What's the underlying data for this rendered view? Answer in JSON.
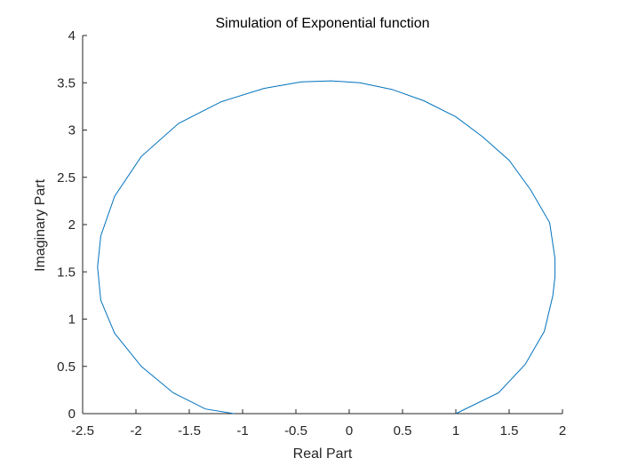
{
  "chart_data": {
    "type": "line",
    "title": "Simulation of Exponential function",
    "xlabel": "Real Part",
    "ylabel": "Imaginary Part",
    "xlim": [
      -2.5,
      2
    ],
    "ylim": [
      0,
      4
    ],
    "xticks": [
      "-2.5",
      "-2",
      "-1.5",
      "-1",
      "-0.5",
      "0",
      "0.5",
      "1",
      "1.5",
      "2"
    ],
    "yticks": [
      "0",
      "0.5",
      "1",
      "1.5",
      "2",
      "2.5",
      "3",
      "3.5",
      "4"
    ],
    "grid": false,
    "series": [
      {
        "color": "#0072BD",
        "x": [
          1.0,
          1.4,
          1.65,
          1.83,
          1.91,
          1.93,
          1.93,
          1.88,
          1.7,
          1.5,
          1.25,
          1.0,
          0.7,
          0.4,
          0.1,
          -0.17,
          -0.45,
          -0.8,
          -1.2,
          -1.6,
          -1.95,
          -2.2,
          -2.33,
          -2.36,
          -2.33,
          -2.2,
          -1.95,
          -1.65,
          -1.35,
          -1.08
        ],
        "y": [
          0.0,
          0.22,
          0.52,
          0.87,
          1.25,
          1.45,
          1.64,
          2.02,
          2.37,
          2.68,
          2.93,
          3.14,
          3.31,
          3.43,
          3.5,
          3.52,
          3.51,
          3.44,
          3.3,
          3.07,
          2.72,
          2.3,
          1.88,
          1.55,
          1.2,
          0.85,
          0.5,
          0.22,
          0.05,
          0.0
        ]
      }
    ]
  }
}
